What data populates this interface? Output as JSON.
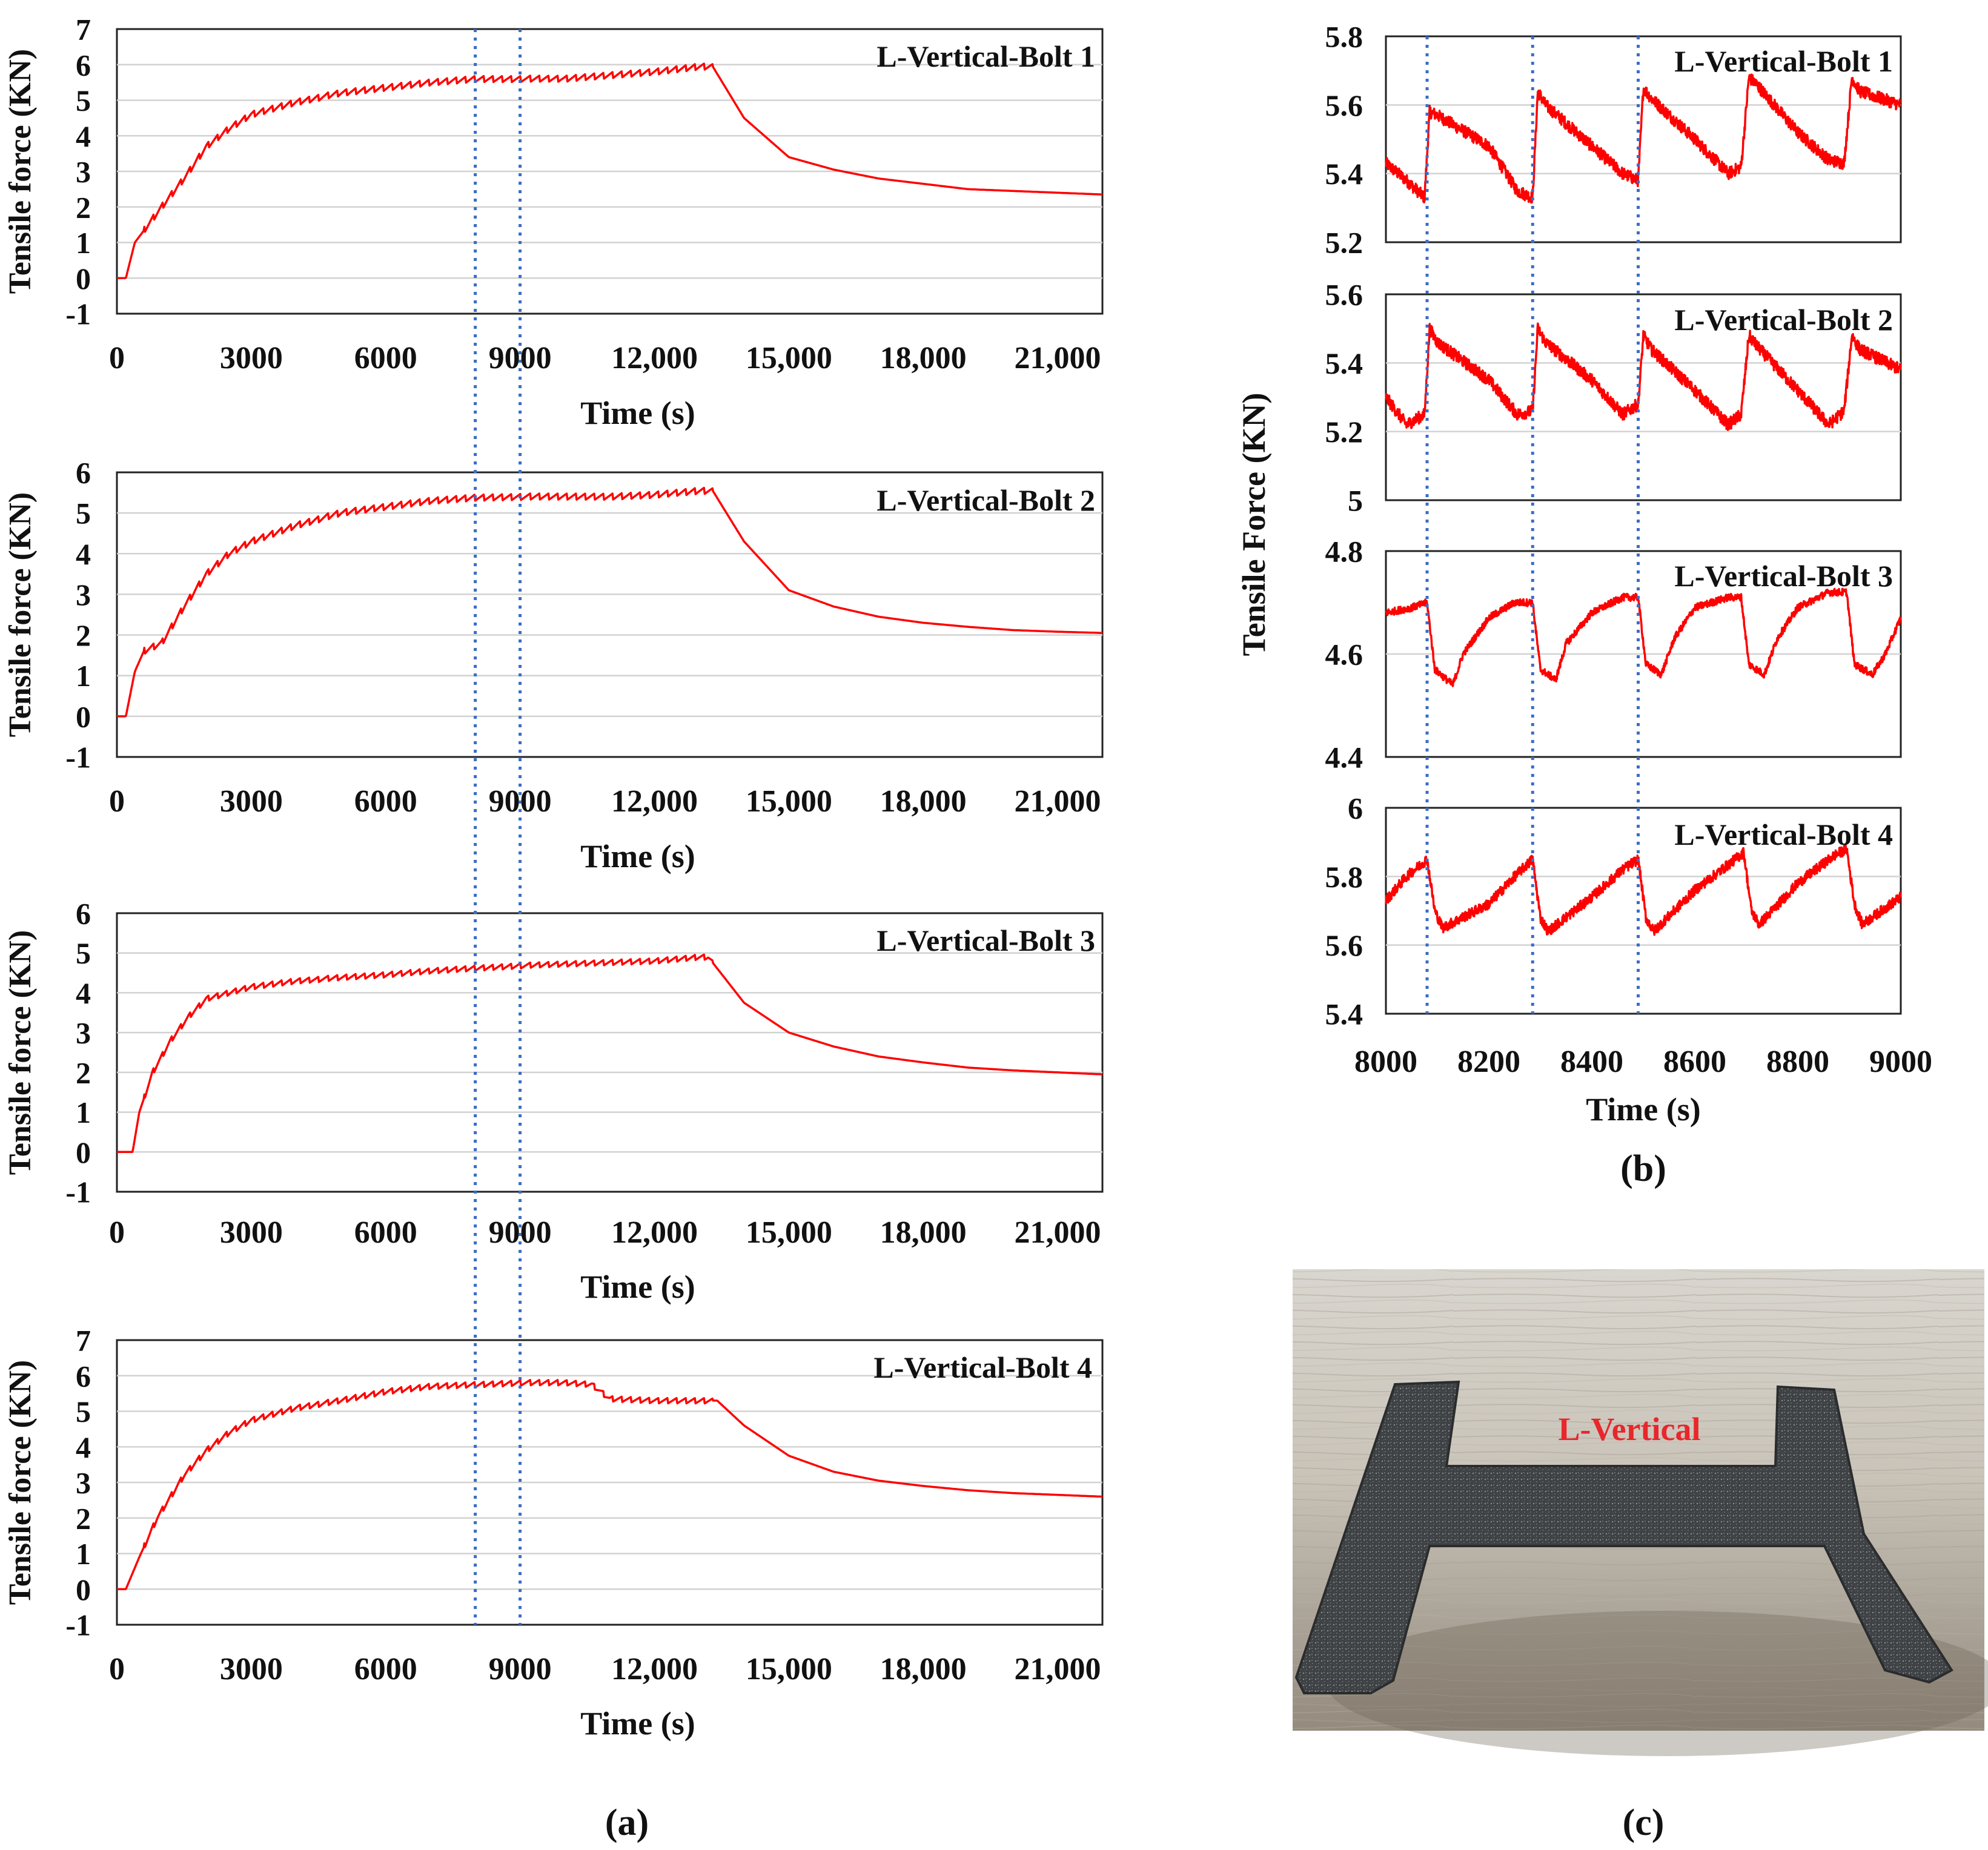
{
  "colors": {
    "series": "#ff0000",
    "marker": "#3a6ec8",
    "grid": "#d2d2d2",
    "frame": "#222222",
    "photo_label": "#e8262b"
  },
  "markers": {
    "left_x": [
      8000,
      9000
    ],
    "right_x": [
      8080,
      8285,
      8490
    ]
  },
  "chart_data": [
    {
      "id": "a1",
      "type": "line",
      "panel": "a",
      "title": "L-Vertical-Bolt 1",
      "xlabel": "Time (s)",
      "ylabel": "Tensile force (KN)",
      "xlim": [
        0,
        22000
      ],
      "ylim": [
        -1,
        7
      ],
      "xticks": [
        0,
        3000,
        6000,
        9000,
        12000,
        15000,
        18000,
        21000
      ],
      "xtick_labels": [
        "0",
        "3000",
        "6000",
        "9000",
        "12,000",
        "15,000",
        "18,000",
        "21,000"
      ],
      "yticks": [
        -1,
        0,
        1,
        2,
        3,
        4,
        5,
        6,
        7
      ],
      "ytick_labels": [
        "-1",
        "0",
        "1",
        "2",
        "3",
        "4",
        "5",
        "6",
        "7"
      ],
      "grid": true,
      "series": [
        {
          "name": "L-Vertical-Bolt 1",
          "x": [
            0,
            200,
            400,
            700,
            1000,
            1500,
            2000,
            2500,
            3000,
            4000,
            5000,
            6000,
            7000,
            8000,
            9000,
            10000,
            11000,
            12000,
            13000,
            13300,
            14000,
            15000,
            16000,
            17000,
            18000,
            19000,
            20000,
            21000,
            22000
          ],
          "y": [
            0,
            0,
            1.0,
            1.5,
            2.0,
            2.8,
            3.7,
            4.2,
            4.6,
            4.95,
            5.2,
            5.35,
            5.5,
            5.6,
            5.6,
            5.6,
            5.7,
            5.8,
            5.95,
            5.95,
            4.5,
            3.4,
            3.05,
            2.8,
            2.65,
            2.5,
            2.45,
            2.4,
            2.35
          ]
        }
      ]
    },
    {
      "id": "a2",
      "type": "line",
      "panel": "a",
      "title": "L-Vertical-Bolt 2",
      "xlabel": "Time (s)",
      "ylabel": "Tensile force (KN)",
      "xlim": [
        0,
        22000
      ],
      "ylim": [
        -1,
        6
      ],
      "xticks": [
        0,
        3000,
        6000,
        9000,
        12000,
        15000,
        18000,
        21000
      ],
      "xtick_labels": [
        "0",
        "3000",
        "6000",
        "9000",
        "12,000",
        "15,000",
        "18,000",
        "21,000"
      ],
      "yticks": [
        -1,
        0,
        1,
        2,
        3,
        4,
        5,
        6
      ],
      "ytick_labels": [
        "-1",
        "0",
        "1",
        "2",
        "3",
        "4",
        "5",
        "6"
      ],
      "grid": true,
      "series": [
        {
          "name": "L-Vertical-Bolt 2",
          "x": [
            0,
            200,
            400,
            600,
            1000,
            1500,
            2000,
            2500,
            3000,
            4000,
            5000,
            6000,
            7000,
            8000,
            9000,
            10000,
            11000,
            12000,
            13000,
            13300,
            14000,
            15000,
            16000,
            17000,
            18000,
            19000,
            20000,
            21000,
            22000
          ],
          "y": [
            0,
            0,
            1.1,
            1.6,
            1.8,
            2.7,
            3.5,
            4.0,
            4.3,
            4.7,
            5.0,
            5.15,
            5.3,
            5.38,
            5.4,
            5.4,
            5.4,
            5.45,
            5.55,
            5.55,
            4.3,
            3.1,
            2.7,
            2.45,
            2.3,
            2.2,
            2.12,
            2.08,
            2.05
          ]
        }
      ]
    },
    {
      "id": "a3",
      "type": "line",
      "panel": "a",
      "title": "L-Vertical-Bolt 3",
      "xlabel": "Time (s)",
      "ylabel": "Tensile force (KN)",
      "xlim": [
        0,
        22000
      ],
      "ylim": [
        -1,
        6
      ],
      "xticks": [
        0,
        3000,
        6000,
        9000,
        12000,
        15000,
        18000,
        21000
      ],
      "xtick_labels": [
        "0",
        "3000",
        "6000",
        "9000",
        "12,000",
        "15,000",
        "18,000",
        "21,000"
      ],
      "yticks": [
        -1,
        0,
        1,
        2,
        3,
        4,
        5,
        6
      ],
      "ytick_labels": [
        "-1",
        "0",
        "1",
        "2",
        "3",
        "4",
        "5",
        "6"
      ],
      "grid": true,
      "series": [
        {
          "name": "L-Vertical-Bolt 3",
          "x": [
            0,
            350,
            500,
            800,
            1200,
            1600,
            2000,
            2500,
            3000,
            4000,
            5000,
            6000,
            7000,
            8000,
            9000,
            10000,
            11000,
            12000,
            13000,
            13200,
            14000,
            15000,
            16000,
            17000,
            18000,
            19000,
            20000,
            21000,
            22000
          ],
          "y": [
            0,
            0,
            1.0,
            2.0,
            2.8,
            3.4,
            3.85,
            4.0,
            4.15,
            4.3,
            4.38,
            4.45,
            4.55,
            4.62,
            4.68,
            4.72,
            4.76,
            4.8,
            4.9,
            4.9,
            3.75,
            3.0,
            2.65,
            2.4,
            2.25,
            2.12,
            2.05,
            2.0,
            1.95
          ]
        }
      ]
    },
    {
      "id": "a4",
      "type": "line",
      "panel": "a",
      "title": "L-Vertical-Bolt 4",
      "xlabel": "Time (s)",
      "ylabel": "Tensile force (KN)",
      "xlim": [
        0,
        22000
      ],
      "ylim": [
        -1,
        7
      ],
      "xticks": [
        0,
        3000,
        6000,
        9000,
        12000,
        15000,
        18000,
        21000
      ],
      "xtick_labels": [
        "0",
        "3000",
        "6000",
        "9000",
        "12,000",
        "15,000",
        "18,000",
        "21,000"
      ],
      "yticks": [
        -1,
        0,
        1,
        2,
        3,
        4,
        5,
        6,
        7
      ],
      "ytick_labels": [
        "-1",
        "0",
        "1",
        "2",
        "3",
        "4",
        "5",
        "6",
        "7"
      ],
      "grid": true,
      "series": [
        {
          "name": "L-Vertical-Bolt 4",
          "x": [
            0,
            200,
            500,
            900,
            1500,
            2000,
            2500,
            3000,
            4000,
            5000,
            6000,
            7000,
            8000,
            9000,
            10000,
            10600,
            11000,
            12000,
            13000,
            13400,
            14000,
            15000,
            16000,
            17000,
            18000,
            19000,
            20000,
            21000,
            22000
          ],
          "y": [
            0,
            0,
            0.9,
            2.0,
            3.2,
            3.9,
            4.4,
            4.75,
            5.1,
            5.3,
            5.55,
            5.7,
            5.75,
            5.8,
            5.8,
            5.75,
            5.35,
            5.3,
            5.3,
            5.3,
            4.6,
            3.75,
            3.3,
            3.05,
            2.9,
            2.78,
            2.7,
            2.65,
            2.6
          ]
        }
      ]
    },
    {
      "id": "b1",
      "type": "line",
      "panel": "b",
      "title": "L-Vertical-Bolt 1",
      "xlim": [
        8000,
        9000
      ],
      "ylim": [
        5.2,
        5.8
      ],
      "yticks": [
        5.2,
        5.4,
        5.6,
        5.8
      ],
      "ytick_labels": [
        "5.2",
        "5.4",
        "5.6",
        "5.8"
      ],
      "grid": true,
      "series": [
        {
          "name": "L-Vertical-Bolt 1",
          "x": [
            8000,
            8040,
            8075,
            8085,
            8100,
            8200,
            8255,
            8285,
            8295,
            8310,
            8400,
            8460,
            8490,
            8500,
            8515,
            8600,
            8665,
            8690,
            8705,
            8720,
            8800,
            8860,
            8890,
            8905,
            8920,
            9000
          ],
          "y": [
            5.43,
            5.38,
            5.33,
            5.58,
            5.57,
            5.48,
            5.35,
            5.33,
            5.64,
            5.6,
            5.48,
            5.4,
            5.38,
            5.65,
            5.62,
            5.5,
            5.4,
            5.42,
            5.68,
            5.66,
            5.52,
            5.44,
            5.43,
            5.68,
            5.64,
            5.6
          ]
        }
      ]
    },
    {
      "id": "b2",
      "type": "line",
      "panel": "b",
      "title": "L-Vertical-Bolt 2",
      "xlim": [
        8000,
        9000
      ],
      "ylim": [
        5,
        5.6
      ],
      "yticks": [
        5,
        5.2,
        5.4,
        5.6
      ],
      "ytick_labels": [
        "5",
        "5.2",
        "5.4",
        "5.6"
      ],
      "grid": true,
      "series": [
        {
          "name": "L-Vertical-Bolt 2",
          "x": [
            8000,
            8040,
            8075,
            8085,
            8100,
            8200,
            8255,
            8285,
            8295,
            8310,
            8400,
            8460,
            8490,
            8500,
            8515,
            8600,
            8665,
            8690,
            8705,
            8720,
            8800,
            8860,
            8890,
            8905,
            8920,
            9000
          ],
          "y": [
            5.3,
            5.22,
            5.25,
            5.5,
            5.46,
            5.35,
            5.25,
            5.26,
            5.5,
            5.46,
            5.35,
            5.25,
            5.28,
            5.48,
            5.44,
            5.32,
            5.22,
            5.25,
            5.48,
            5.45,
            5.32,
            5.22,
            5.26,
            5.48,
            5.44,
            5.38
          ]
        }
      ]
    },
    {
      "id": "b3",
      "type": "line",
      "panel": "b",
      "title": "L-Vertical-Bolt 3",
      "xlim": [
        8000,
        9000
      ],
      "ylim": [
        4.4,
        4.8
      ],
      "yticks": [
        4.4,
        4.6,
        4.8
      ],
      "ytick_labels": [
        "4.4",
        "4.6",
        "4.8"
      ],
      "grid": true,
      "series": [
        {
          "name": "L-Vertical-Bolt 3",
          "x": [
            8000,
            8050,
            8080,
            8095,
            8130,
            8150,
            8200,
            8250,
            8285,
            8300,
            8330,
            8350,
            8400,
            8460,
            8490,
            8505,
            8535,
            8560,
            8600,
            8665,
            8690,
            8705,
            8735,
            8760,
            8800,
            8860,
            8895,
            8910,
            8945,
            8970,
            9000
          ],
          "y": [
            4.68,
            4.69,
            4.7,
            4.57,
            4.54,
            4.6,
            4.67,
            4.7,
            4.7,
            4.57,
            4.55,
            4.62,
            4.68,
            4.71,
            4.71,
            4.58,
            4.56,
            4.63,
            4.69,
            4.71,
            4.71,
            4.58,
            4.56,
            4.63,
            4.69,
            4.72,
            4.72,
            4.58,
            4.56,
            4.6,
            4.67
          ]
        }
      ]
    },
    {
      "id": "b4",
      "type": "line",
      "panel": "b",
      "title": "L-Vertical-Bolt 4",
      "xlabel": "Time (s)",
      "xlim": [
        8000,
        9000
      ],
      "ylim": [
        5.4,
        6
      ],
      "xticks": [
        8000,
        8200,
        8400,
        8600,
        8800,
        9000
      ],
      "xtick_labels": [
        "8000",
        "8200",
        "8400",
        "8600",
        "8800",
        "9000"
      ],
      "yticks": [
        5.4,
        5.6,
        5.8,
        6
      ],
      "ytick_labels": [
        "5.4",
        "5.6",
        "5.8",
        "6"
      ],
      "grid": true,
      "series": [
        {
          "name": "L-Vertical-Bolt 4",
          "x": [
            8000,
            8040,
            8080,
            8095,
            8110,
            8200,
            8250,
            8285,
            8300,
            8315,
            8400,
            8460,
            8490,
            8505,
            8520,
            8600,
            8670,
            8695,
            8710,
            8725,
            8800,
            8870,
            8895,
            8910,
            8925,
            9000
          ],
          "y": [
            5.73,
            5.8,
            5.85,
            5.7,
            5.65,
            5.72,
            5.8,
            5.85,
            5.68,
            5.64,
            5.74,
            5.82,
            5.85,
            5.68,
            5.64,
            5.76,
            5.84,
            5.87,
            5.7,
            5.66,
            5.78,
            5.86,
            5.88,
            5.72,
            5.66,
            5.74
          ]
        }
      ]
    }
  ],
  "panel_b_ylabel": "Tensile Force (KN)",
  "panel_labels": {
    "a": "(a)",
    "b": "(b)",
    "c": "(c)"
  },
  "photo": {
    "label": "L-Vertical"
  }
}
